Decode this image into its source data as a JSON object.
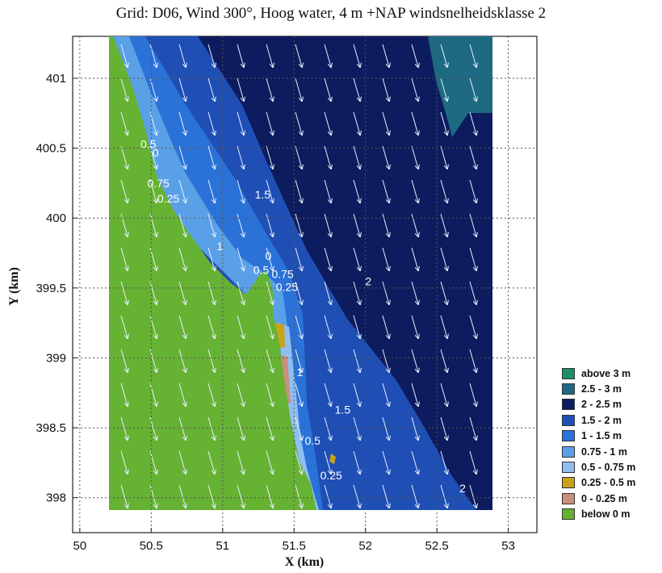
{
  "chart_data": {
    "type": "heatmap",
    "title": "Grid: D06, Wind 300°, Hoog water, 4 m +NAP windsnelheidsklasse 2",
    "xlabel": "X (km)",
    "ylabel": "Y (km)",
    "xlim": [
      49.95,
      53.2
    ],
    "ylim": [
      397.75,
      401.3
    ],
    "xticks": [
      "50",
      "50.5",
      "51",
      "51.5",
      "52",
      "52.5",
      "53"
    ],
    "yticks": [
      "398",
      "398.5",
      "399",
      "399.5",
      "400",
      "400.5",
      "401"
    ],
    "grid": true,
    "legend_position": "right",
    "legend": [
      {
        "label": "above 3 m",
        "color": "#1a8f6a"
      },
      {
        "label": "2.5 - 3 m",
        "color": "#1d6a82"
      },
      {
        "label": "2 - 2.5 m",
        "color": "#0d1c5e"
      },
      {
        "label": "1.5 - 2 m",
        "color": "#1f4fb5"
      },
      {
        "label": "1 - 1.5 m",
        "color": "#2a72d8"
      },
      {
        "label": "0.75 - 1 m",
        "color": "#5aa0e6"
      },
      {
        "label": "0.5 - 0.75 m",
        "color": "#8fbff0"
      },
      {
        "label": "0.25 - 0.5 m",
        "color": "#c9a21a"
      },
      {
        "label": "0 - 0.25 m",
        "color": "#c99080"
      },
      {
        "label": "below 0 m",
        "color": "#66b233"
      }
    ],
    "contour_labels": [
      {
        "text": "0.5",
        "x": 50.48,
        "y": 400.5
      },
      {
        "text": "0",
        "x": 50.53,
        "y": 400.44
      },
      {
        "text": "0.75",
        "x": 50.55,
        "y": 400.22
      },
      {
        "text": "0.25",
        "x": 50.62,
        "y": 400.11
      },
      {
        "text": "1.5",
        "x": 51.28,
        "y": 400.14
      },
      {
        "text": "1",
        "x": 50.98,
        "y": 399.77
      },
      {
        "text": "0",
        "x": 51.32,
        "y": 399.7
      },
      {
        "text": "0.5",
        "x": 51.27,
        "y": 399.6
      },
      {
        "text": "0.75",
        "x": 51.42,
        "y": 399.57
      },
      {
        "text": "0.25",
        "x": 51.45,
        "y": 399.48
      },
      {
        "text": "2",
        "x": 52.02,
        "y": 399.52
      },
      {
        "text": "1",
        "x": 51.54,
        "y": 398.87
      },
      {
        "text": "1.5",
        "x": 51.84,
        "y": 398.6
      },
      {
        "text": "0.5",
        "x": 51.63,
        "y": 398.38
      },
      {
        "text": "0.25",
        "x": 51.76,
        "y": 398.13
      },
      {
        "text": "2",
        "x": 52.68,
        "y": 398.04
      }
    ],
    "wind_direction_deg": 300
  }
}
